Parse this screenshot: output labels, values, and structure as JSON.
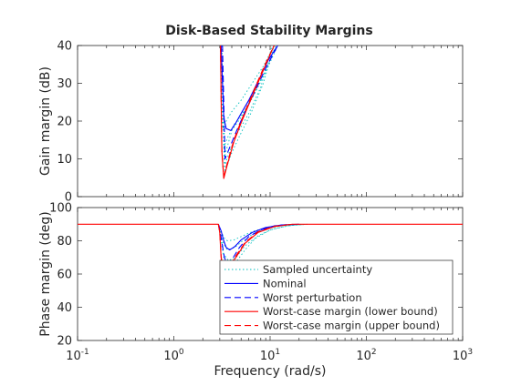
{
  "chart_data": [
    {
      "type": "line",
      "title": "Disk-Based Stability Margins",
      "ylabel": "Gain margin (dB)",
      "xlabel": "",
      "xscale": "log",
      "xlim": [
        0.1,
        1000
      ],
      "ylim": [
        0,
        40
      ],
      "yticks": [
        0,
        10,
        20,
        30,
        40
      ],
      "yticklabels": [
        "0",
        "10",
        "20",
        "30",
        "40"
      ],
      "grid": false,
      "series": [
        {
          "name": "Sampled uncertainty",
          "color": "#00bfbf",
          "style": "dotted",
          "samples": [
            {
              "x": [
                3.05,
                3.2,
                3.5,
                4.0,
                5.0,
                6.5,
                8.5,
                11.0
              ],
              "y": [
                40,
                18,
                20,
                22.5,
                25.5,
                30,
                34.5,
                40
              ]
            },
            {
              "x": [
                3.1,
                3.3,
                3.6,
                4.2,
                5.5,
                7.0,
                9.0,
                11.5
              ],
              "y": [
                40,
                13,
                15.5,
                19,
                23,
                28,
                33.5,
                40
              ]
            },
            {
              "x": [
                3.1,
                3.35,
                3.8,
                4.5,
                6.0,
                8.0,
                10.5
              ],
              "y": [
                40,
                8,
                12,
                16.5,
                22,
                29,
                40
              ]
            },
            {
              "x": [
                3.15,
                3.4,
                3.9,
                4.8,
                6.3,
                8.5,
                11.0
              ],
              "y": [
                40,
                6.5,
                11,
                16,
                22,
                30,
                40
              ]
            },
            {
              "x": [
                3.1,
                3.4,
                4.0,
                5.0,
                6.5,
                9.0,
                12.0
              ],
              "y": [
                40,
                11,
                17.5,
                21,
                26,
                33,
                40
              ]
            }
          ]
        },
        {
          "name": "Nominal",
          "color": "#0000ff",
          "style": "solid",
          "x": [
            3.1,
            3.3,
            3.5,
            3.9,
            4.4,
            5.0,
            6.0,
            7.5,
            9.5,
            12.0
          ],
          "y": [
            40,
            21,
            18,
            17.5,
            19.5,
            22,
            25.5,
            30.5,
            36,
            40
          ]
        },
        {
          "name": "Worst perturbation",
          "color": "#0000ff",
          "style": "dashed",
          "x": [
            3.2,
            3.4,
            3.8,
            4.5,
            5.5,
            7.0,
            9.0,
            12.0
          ],
          "y": [
            40,
            10,
            13,
            17.5,
            22.5,
            28,
            34,
            40
          ]
        },
        {
          "name": "Worst-case margin (lower bound)",
          "color": "#ff0000",
          "style": "solid",
          "x": [
            3.05,
            3.15,
            3.3,
            3.6,
            4.2,
            5.0,
            6.5,
            8.5,
            11.0
          ],
          "y": [
            40,
            12,
            4.8,
            8.5,
            14.5,
            19.5,
            26.5,
            33.5,
            40
          ]
        },
        {
          "name": "Worst-case margin (upper bound)",
          "color": "#ff0000",
          "style": "dashed",
          "x": [
            3.05,
            3.15,
            3.3,
            3.6,
            4.2,
            5.0,
            6.5,
            8.5,
            11.0
          ],
          "y": [
            40,
            12.5,
            5.3,
            9,
            15,
            20,
            27,
            34,
            40
          ]
        }
      ]
    },
    {
      "type": "line",
      "title": "",
      "ylabel": "Phase margin (deg)",
      "xlabel": "Frequency (rad/s)",
      "xscale": "log",
      "xlim": [
        0.1,
        1000
      ],
      "ylim": [
        20,
        100
      ],
      "xticks": [
        0.1,
        1,
        10,
        100,
        1000
      ],
      "xticklabels": [
        {
          "base": "10",
          "exp": "-1"
        },
        {
          "base": "10",
          "exp": "0"
        },
        {
          "base": "10",
          "exp": "1"
        },
        {
          "base": "10",
          "exp": "2"
        },
        {
          "base": "10",
          "exp": "3"
        }
      ],
      "yticks": [
        20,
        40,
        60,
        80,
        100
      ],
      "yticklabels": [
        "20",
        "40",
        "60",
        "80",
        "100"
      ],
      "grid": false,
      "legend_position": "bottom-right",
      "series": [
        {
          "name": "Sampled uncertainty",
          "color": "#00bfbf",
          "style": "dotted",
          "samples": [
            {
              "x": [
                2.9,
                3.1,
                3.3,
                3.6,
                4.2,
                5.0,
                6.5,
                9.0,
                13.0,
                20.0
              ],
              "y": [
                90,
                86,
                82,
                80,
                80.5,
                82.5,
                85.5,
                88,
                89.5,
                90
              ]
            },
            {
              "x": [
                2.9,
                3.1,
                3.3,
                3.6,
                4.3,
                5.2,
                6.8,
                9.5,
                14.0,
                22.0
              ],
              "y": [
                90,
                84,
                78,
                74.5,
                76,
                80,
                84.5,
                87.5,
                89.3,
                90
              ]
            },
            {
              "x": [
                2.9,
                3.1,
                3.35,
                3.7,
                4.4,
                5.5,
                7.0,
                10.0,
                15.0,
                24.0
              ],
              "y": [
                90,
                80,
                68,
                63,
                67,
                74.5,
                81.5,
                86.5,
                89,
                90
              ]
            },
            {
              "x": [
                2.9,
                3.1,
                3.3,
                3.7,
                4.5,
                5.5,
                7.5,
                10.5,
                16.0,
                25.0
              ],
              "y": [
                90,
                82,
                72,
                68,
                70.5,
                77,
                83,
                87,
                89.2,
                90
              ]
            }
          ]
        },
        {
          "name": "Nominal",
          "color": "#0000ff",
          "style": "solid",
          "x": [
            2.9,
            3.1,
            3.3,
            3.5,
            3.8,
            4.3,
            5.0,
            6.5,
            9.0,
            13.0,
            20.0
          ],
          "y": [
            90,
            86,
            80,
            76,
            74.5,
            76.5,
            80.5,
            85,
            88,
            89.5,
            90
          ]
        },
        {
          "name": "Worst perturbation",
          "color": "#0000ff",
          "style": "dashed",
          "x": [
            2.9,
            3.1,
            3.35,
            3.6,
            4.0,
            4.8,
            6.0,
            8.0,
            11.0,
            16.0
          ],
          "y": [
            90,
            82,
            70,
            66,
            68.5,
            76,
            82.5,
            86.5,
            89,
            90
          ]
        },
        {
          "name": "Worst-case margin (lower bound)",
          "color": "#ff0000",
          "style": "solid",
          "x": [
            0.1,
            2.9,
            3.0,
            3.1,
            3.25,
            3.6,
            4.3,
            5.5,
            7.5,
            11.0,
            17.0,
            1000
          ],
          "y": [
            90,
            90,
            85,
            70,
            59,
            61.5,
            69,
            78.5,
            85,
            88.5,
            90,
            90
          ]
        },
        {
          "name": "Worst-case margin (upper bound)",
          "color": "#ff0000",
          "style": "dashed",
          "x": [
            2.9,
            3.0,
            3.1,
            3.25,
            3.6,
            4.3,
            5.5,
            7.5,
            11.0,
            17.0
          ],
          "y": [
            90,
            85.5,
            71,
            60.5,
            63,
            70,
            79,
            85.5,
            88.7,
            90
          ]
        }
      ]
    }
  ]
}
